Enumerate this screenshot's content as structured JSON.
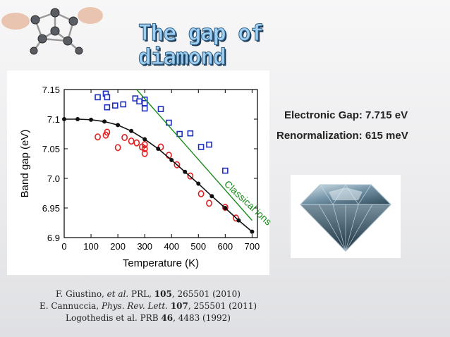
{
  "slide": {
    "title_line1": "The gap of",
    "title_line2": "diamond",
    "electronic_gap": "Electronic Gap:  7.715 eV",
    "renormalization": "Renormalization: 615 meV"
  },
  "references": [
    {
      "prefix": "F. Giustino, ",
      "italic": "et al.",
      "mid": "  PRL, ",
      "bold": "105",
      "suffix": ", 265501 (2010)"
    },
    {
      "prefix": "E. Cannuccia, ",
      "italic": "Phys. Rev. Lett.",
      "mid": " ",
      "bold": "107",
      "suffix": ", 255501 (2011)"
    },
    {
      "prefix": "Logothedis et al. PRB ",
      "italic": "",
      "mid": "",
      "bold": "46",
      "suffix": ", 4483 (1992)"
    }
  ],
  "chart_data": {
    "type": "scatter",
    "xlabel": "Temperature (K)",
    "ylabel": "Band gap (eV)",
    "xlim": [
      0,
      720
    ],
    "ylim": [
      6.9,
      7.15
    ],
    "xticks": [
      0,
      100,
      200,
      300,
      400,
      500,
      600,
      700
    ],
    "yticks": [
      6.9,
      6.95,
      7.0,
      7.05,
      7.1,
      7.15
    ],
    "ytick_labels": [
      "6.9",
      "6.95",
      "7.0",
      "7.05",
      "7.1",
      "7.15"
    ],
    "annotation": "Classical ions",
    "series": [
      {
        "marker": "square-open",
        "color": "#1f2fbf",
        "points": [
          [
            125,
            7.137
          ],
          [
            155,
            7.143
          ],
          [
            160,
            7.137
          ],
          [
            160,
            7.12
          ],
          [
            190,
            7.123
          ],
          [
            220,
            7.125
          ],
          [
            265,
            7.135
          ],
          [
            280,
            7.13
          ],
          [
            300,
            7.133
          ],
          [
            300,
            7.127
          ],
          [
            300,
            7.118
          ],
          [
            360,
            7.117
          ],
          [
            390,
            7.094
          ],
          [
            430,
            7.075
          ],
          [
            470,
            7.076
          ],
          [
            510,
            7.053
          ],
          [
            540,
            7.057
          ],
          [
            600,
            7.013
          ]
        ]
      },
      {
        "marker": "circle-open",
        "color": "#e02020",
        "points": [
          [
            125,
            7.07
          ],
          [
            155,
            7.073
          ],
          [
            160,
            7.078
          ],
          [
            200,
            7.052
          ],
          [
            225,
            7.069
          ],
          [
            250,
            7.063
          ],
          [
            270,
            7.06
          ],
          [
            290,
            7.053
          ],
          [
            300,
            7.057
          ],
          [
            300,
            7.05
          ],
          [
            300,
            7.042
          ],
          [
            360,
            7.053
          ],
          [
            390,
            7.039
          ],
          [
            420,
            7.023
          ],
          [
            470,
            7.004
          ],
          [
            510,
            6.974
          ],
          [
            540,
            6.958
          ],
          [
            600,
            6.951
          ],
          [
            640,
            6.933
          ]
        ]
      },
      {
        "marker": "filled-dot-line",
        "color": "#111111",
        "points": [
          [
            0,
            7.1
          ],
          [
            50,
            7.1
          ],
          [
            100,
            7.099
          ],
          [
            150,
            7.096
          ],
          [
            200,
            7.09
          ],
          [
            250,
            7.08
          ],
          [
            300,
            7.066
          ],
          [
            350,
            7.05
          ],
          [
            400,
            7.031
          ],
          [
            450,
            7.011
          ],
          [
            500,
            6.991
          ],
          [
            550,
            6.97
          ],
          [
            600,
            6.95
          ],
          [
            650,
            6.929
          ],
          [
            700,
            6.91
          ]
        ]
      },
      {
        "marker": "line",
        "color": "#1c8c1c",
        "points": [
          [
            270,
            7.15
          ],
          [
            700,
            6.929
          ]
        ]
      }
    ]
  },
  "colors": {
    "title_fill": "#9fd0f2",
    "title_stroke": "#2f5f86",
    "annotation": "#1c8c1c"
  },
  "icons": [
    "molecule-model-icon",
    "diamond-image-icon"
  ]
}
